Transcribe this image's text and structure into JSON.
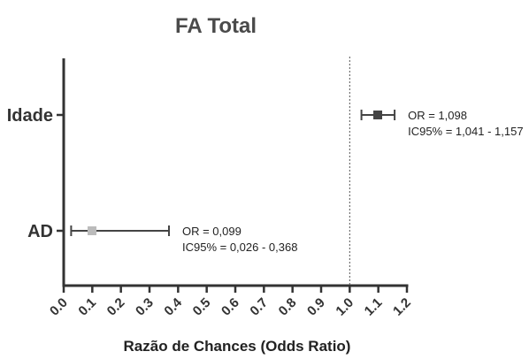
{
  "chart_data": {
    "type": "forest",
    "title": "FA Total",
    "xlabel": "Razão de Chances (Odds Ratio)",
    "ylabel": "",
    "xlim": [
      0.0,
      1.2
    ],
    "x_ticks": [
      "0.0",
      "0.1",
      "0.2",
      "0.3",
      "0.4",
      "0.5",
      "0.6",
      "0.7",
      "0.8",
      "0.9",
      "1.0",
      "1.1",
      "1.2"
    ],
    "reference_line": 1.0,
    "grid": false,
    "series": [
      {
        "category": "Idade",
        "or": 1.098,
        "ci_low": 1.041,
        "ci_high": 1.157,
        "color": "#444444",
        "label_or": "OR = 1,098",
        "label_ci": "IC95% = 1,041 - 1,157"
      },
      {
        "category": "AD",
        "or": 0.099,
        "ci_low": 0.026,
        "ci_high": 0.368,
        "color": "#bbbbbb",
        "label_or": "OR = 0,099",
        "label_ci": "IC95% = 0,026 - 0,368"
      }
    ]
  }
}
